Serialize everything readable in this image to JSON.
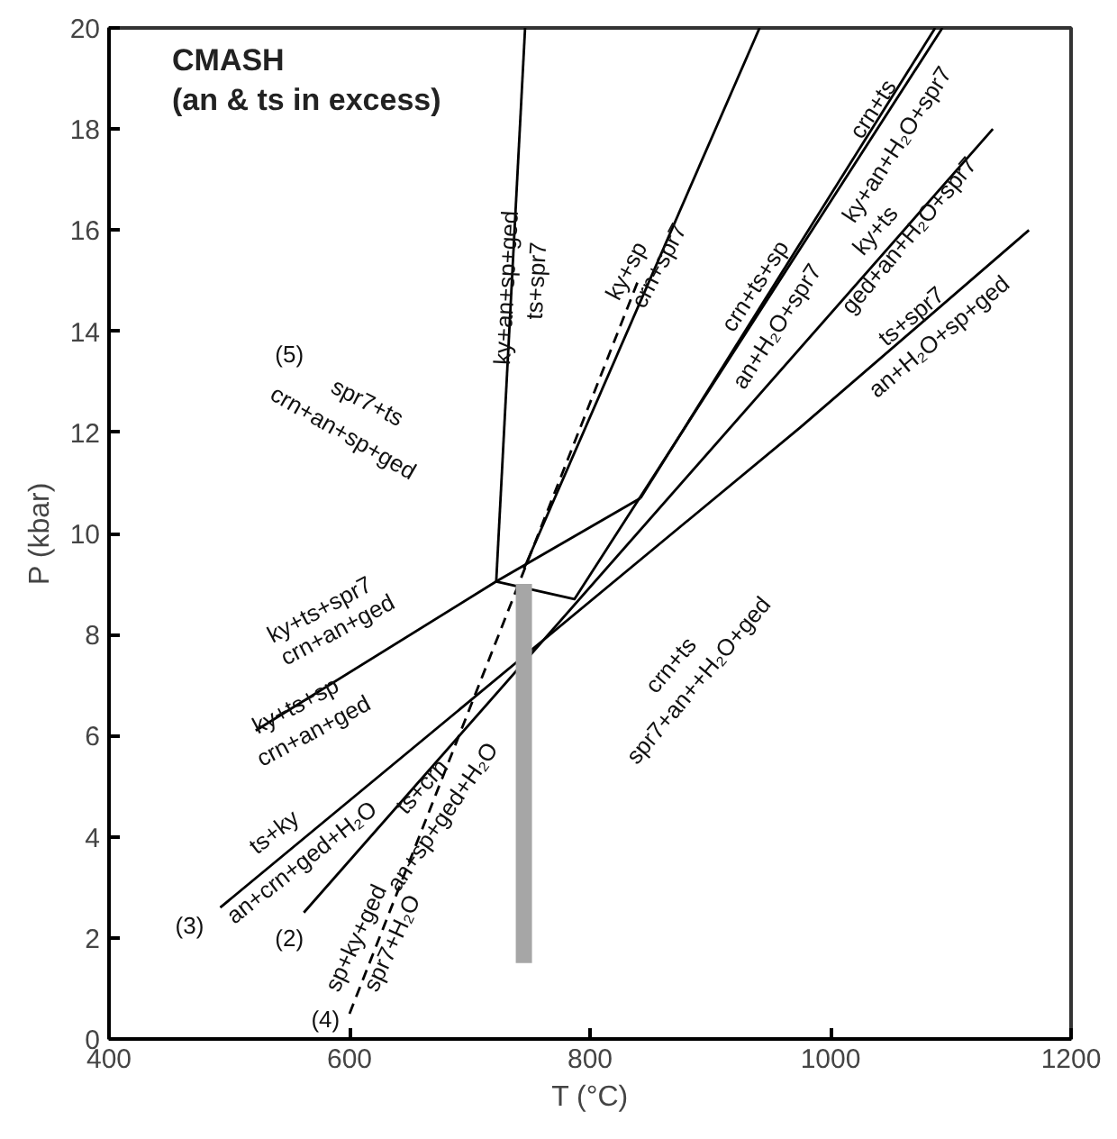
{
  "chart_data": {
    "type": "line",
    "title": "CMASH",
    "subtitle": "(an & ts in excess)",
    "xlabel": "T (°C)",
    "ylabel": "P (kbar)",
    "xlim": [
      400,
      1200
    ],
    "ylim": [
      0,
      20
    ],
    "xticks": [
      400,
      600,
      800,
      1000,
      1200
    ],
    "yticks": [
      0,
      2,
      4,
      6,
      8,
      10,
      12,
      14,
      16,
      18,
      20
    ],
    "grid": false,
    "marker": "none",
    "series": [
      {
        "color": "#000000",
        "x": [
          722,
          746
        ],
        "values": [
          9.05,
          20
        ]
      },
      {
        "color": "#000000",
        "x": [
          522,
          722,
          842
        ],
        "values": [
          6.1,
          9.05,
          10.7
        ]
      },
      {
        "color": "#000000",
        "x": [
          492.5,
          975,
          1165
        ],
        "values": [
          2.6,
          12.1,
          16
        ]
      },
      {
        "color": "#000000",
        "x": [
          562,
          1135
        ],
        "values": [
          2.5,
          18
        ]
      },
      {
        "color": "#000000",
        "x": [
          600,
          840
        ],
        "values": [
          0.5,
          15
        ],
        "line_style": "dashed"
      },
      {
        "color": "#000000",
        "x": [
          745,
          941
        ],
        "values": [
          9.3,
          20
        ]
      },
      {
        "color": "#000000",
        "x": [
          842,
          1087
        ],
        "values": [
          10.7,
          20
        ]
      },
      {
        "color": "#000000",
        "x": [
          722,
          787,
          1093
        ],
        "values": [
          9.05,
          8.7,
          20
        ]
      },
      {
        "color": "#a6a6a6",
        "x": [
          745,
          745
        ],
        "values": [
          1.5,
          9.0
        ]
      }
    ],
    "annotations": [
      "ky+an+sp+ged",
      "ts+spr7",
      "ky+sp",
      "crn+spr7",
      "crn+ts",
      "ky+an+H₂O+spr7",
      "crn+ts+sp",
      "an+H₂O+spr7",
      "ky+ts",
      "ged+an+H₂O+spr7",
      "ts+spr7",
      "an+H₂O+sp+ged",
      "(5)",
      "spr7+ts",
      "crn+an+sp+ged",
      "ky+ts+spr7",
      "crn+an+ged",
      "ky+ts+sp",
      "crn+an+ged",
      "ts+ky",
      "an+crn+ged+H₂O",
      "ts+crn",
      "an+sp+ged+H₂O",
      "sp+ky+ged",
      "spr7+H₂O",
      "(3)",
      "(2)",
      "(4)",
      "crn+ts",
      "spr7+an++H₂O+ged"
    ]
  }
}
